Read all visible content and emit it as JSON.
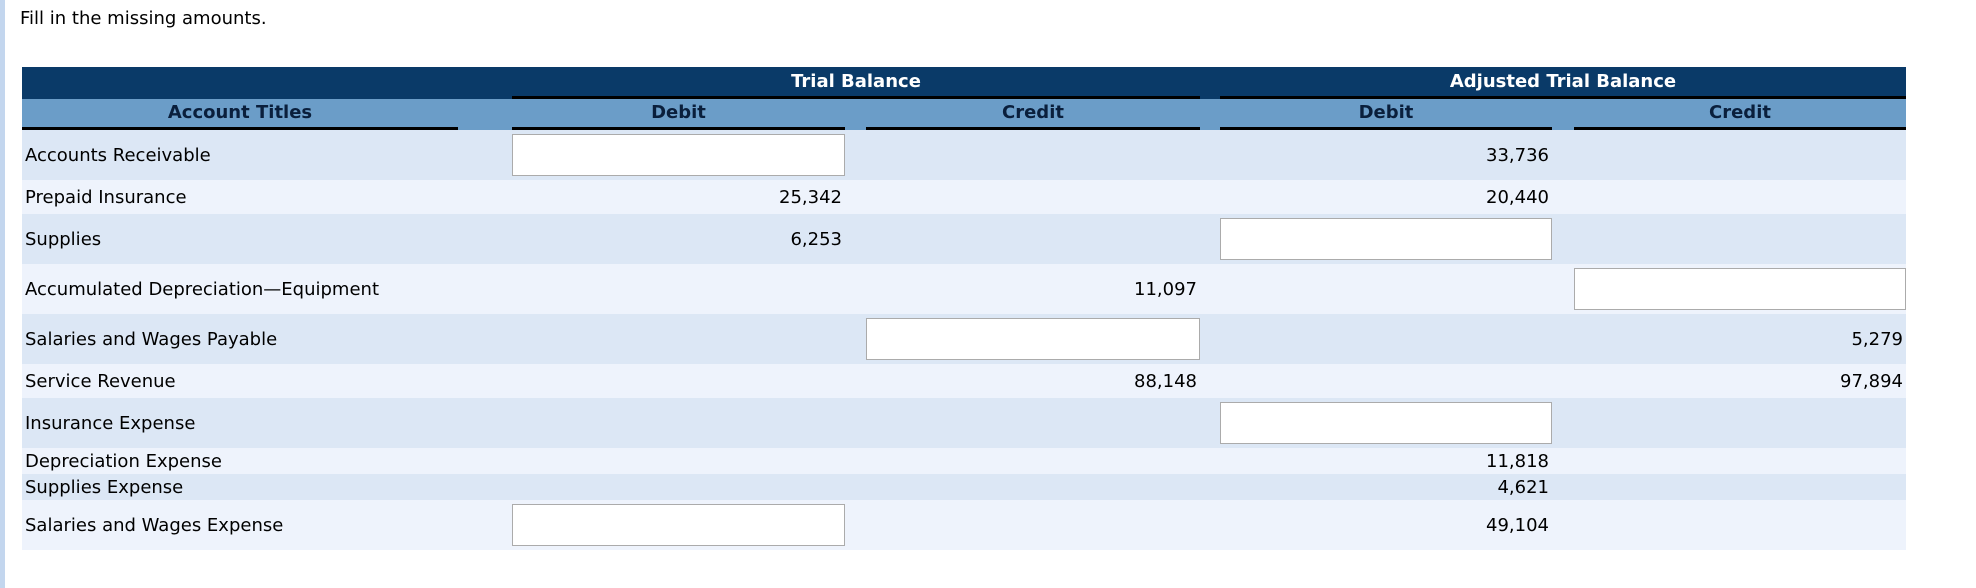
{
  "instruction": "Fill in the missing amounts.",
  "table": {
    "groups": {
      "trial_balance": "Trial Balance",
      "adjusted_trial_balance": "Adjusted Trial Balance"
    },
    "columns": {
      "account": "Account Titles",
      "debit": "Debit",
      "credit": "Credit"
    },
    "rows": [
      {
        "account": "Accounts Receivable",
        "tb_debit": {
          "kind": "input",
          "value": ""
        },
        "atb_debit": {
          "kind": "text",
          "value": "33,736"
        }
      },
      {
        "account": "Prepaid Insurance",
        "tb_debit": {
          "kind": "text",
          "value": "25,342"
        },
        "atb_debit": {
          "kind": "text",
          "value": "20,440"
        }
      },
      {
        "account": "Supplies",
        "tb_debit": {
          "kind": "text",
          "value": "6,253"
        },
        "atb_debit": {
          "kind": "input",
          "value": ""
        }
      },
      {
        "account": "Accumulated Depreciation—Equipment",
        "tb_credit": {
          "kind": "text",
          "value": "11,097"
        },
        "atb_credit": {
          "kind": "input",
          "value": ""
        }
      },
      {
        "account": "Salaries and Wages Payable",
        "tb_credit": {
          "kind": "input",
          "value": ""
        },
        "atb_credit": {
          "kind": "text",
          "value": "5,279"
        }
      },
      {
        "account": "Service Revenue",
        "tb_credit": {
          "kind": "text",
          "value": "88,148"
        },
        "atb_credit": {
          "kind": "text",
          "value": "97,894"
        }
      },
      {
        "account": "Insurance Expense",
        "atb_debit": {
          "kind": "input",
          "value": ""
        }
      },
      {
        "account": "Depreciation Expense",
        "atb_debit": {
          "kind": "text",
          "value": "11,818"
        }
      },
      {
        "account": "Supplies Expense",
        "atb_debit": {
          "kind": "text",
          "value": "4,621"
        }
      },
      {
        "account": "Salaries and Wages Expense",
        "tb_debit": {
          "kind": "input",
          "value": ""
        },
        "atb_debit": {
          "kind": "text",
          "value": "49,104"
        }
      }
    ]
  },
  "colors": {
    "header_navy": "#0a3a68",
    "header_band_blue": "#6b9dc8",
    "header_text_navy": "#0a1f3c",
    "row_shade_dark": "#dce7f5",
    "row_shade_light": "#eef3fc",
    "left_strip_blue": "#c3d6ee",
    "input_border_gray": "#ababab",
    "underline_black": "#000000"
  }
}
